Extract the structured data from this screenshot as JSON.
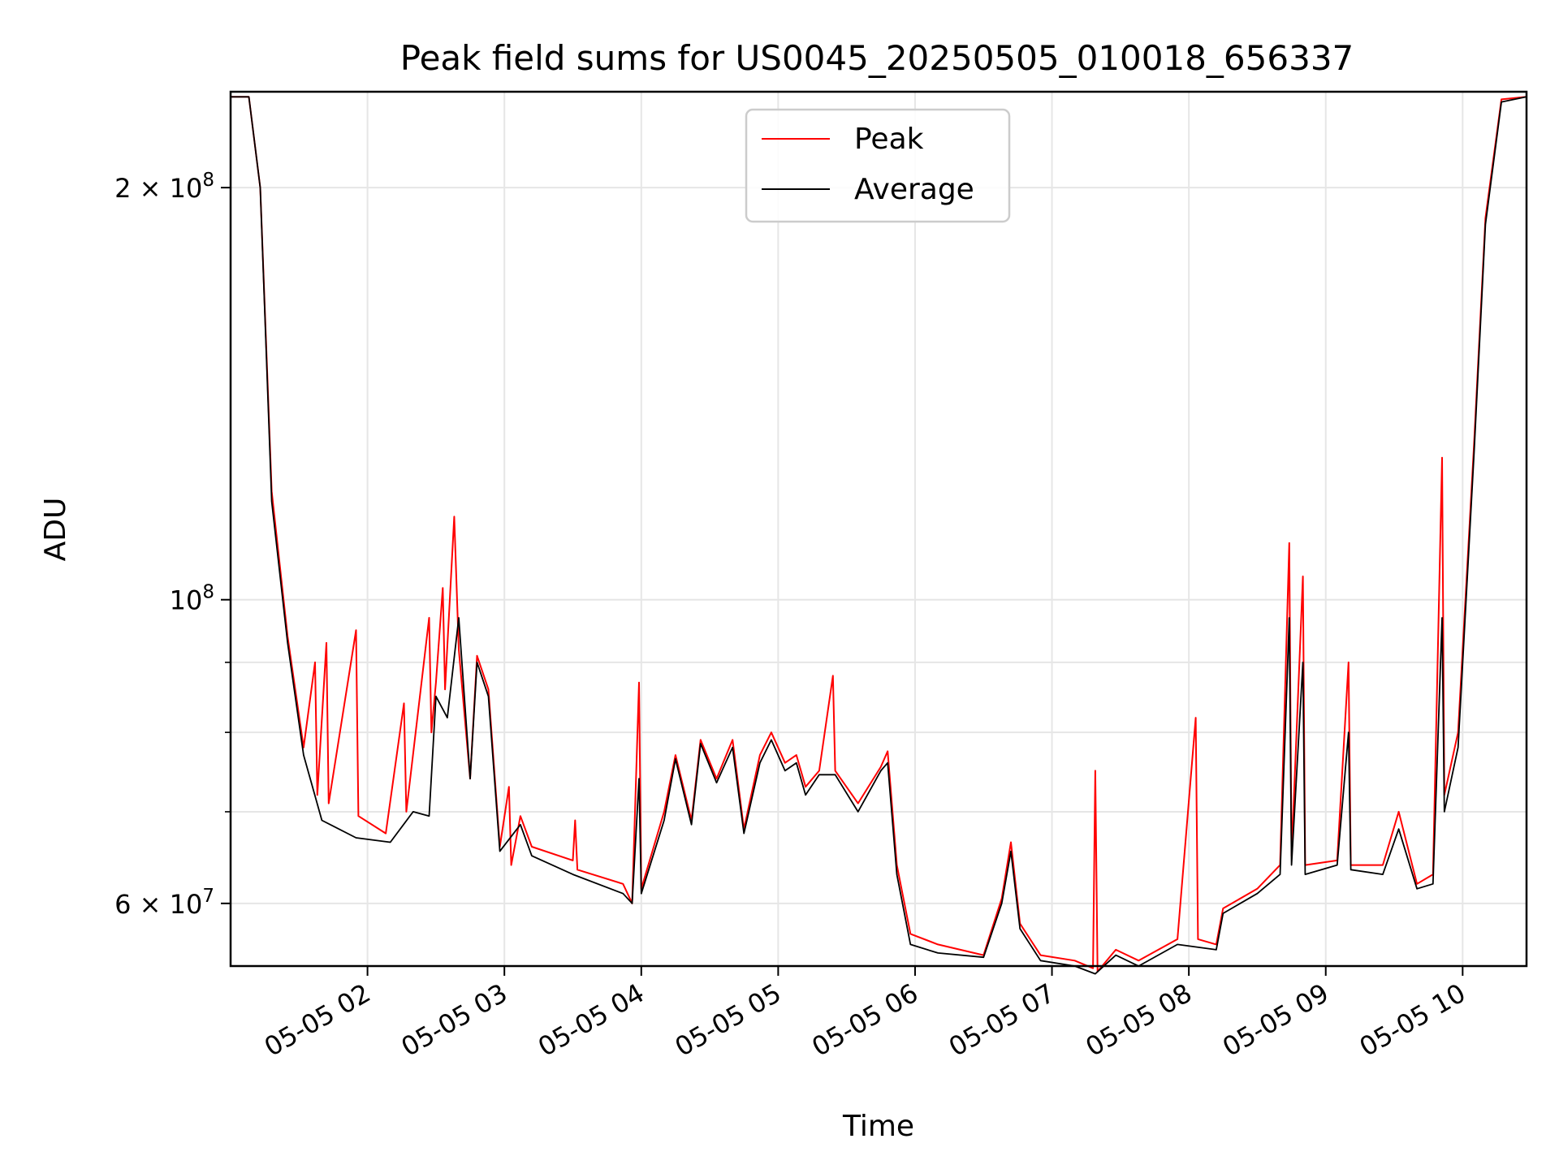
{
  "chart_data": {
    "type": "line",
    "title": "Peak field sums for US0045_20250505_010018_656337",
    "xlabel": "Time",
    "ylabel": "ADU",
    "x_range": [
      "2025-05-05 01:00",
      "2025-05-05 10:28"
    ],
    "ylim": [
      54000000,
      235000000
    ],
    "y_scale": "log",
    "grid": true,
    "legend_position": "upper center",
    "x_ticks": [
      {
        "value": "2025-05-05 02:00",
        "label": "05-05 02"
      },
      {
        "value": "2025-05-05 03:00",
        "label": "05-05 03"
      },
      {
        "value": "2025-05-05 04:00",
        "label": "05-05 04"
      },
      {
        "value": "2025-05-05 05:00",
        "label": "05-05 05"
      },
      {
        "value": "2025-05-05 06:00",
        "label": "05-05 06"
      },
      {
        "value": "2025-05-05 07:00",
        "label": "05-05 07"
      },
      {
        "value": "2025-05-05 08:00",
        "label": "05-05 08"
      },
      {
        "value": "2025-05-05 09:00",
        "label": "05-05 09"
      },
      {
        "value": "2025-05-05 10:00",
        "label": "05-05 10"
      }
    ],
    "y_major_ticks": [
      {
        "value": 60000000,
        "base": "6",
        "exp": "7",
        "label": "6 × 10^7"
      },
      {
        "value": 100000000,
        "base": "",
        "exp": "8",
        "label": "10^8"
      },
      {
        "value": 200000000,
        "base": "2",
        "exp": "8",
        "label": "2 × 10^8"
      }
    ],
    "y_minor_ticks": [
      70000000,
      80000000,
      90000000
    ],
    "series": [
      {
        "name": "Peak",
        "color": "#ff0000",
        "points": [
          [
            "2025-05-05 01:00",
            233000000
          ],
          [
            "2025-05-05 01:08",
            233000000
          ],
          [
            "2025-05-05 01:13",
            200000000
          ],
          [
            "2025-05-05 01:18",
            120000000
          ],
          [
            "2025-05-05 01:25",
            94000000
          ],
          [
            "2025-05-05 01:32",
            78000000
          ],
          [
            "2025-05-05 01:37",
            90000000
          ],
          [
            "2025-05-05 01:38",
            72000000
          ],
          [
            "2025-05-05 01:42",
            93000000
          ],
          [
            "2025-05-05 01:43",
            71000000
          ],
          [
            "2025-05-05 01:55",
            95000000
          ],
          [
            "2025-05-05 01:56",
            69500000
          ],
          [
            "2025-05-05 02:08",
            67500000
          ],
          [
            "2025-05-05 02:16",
            84000000
          ],
          [
            "2025-05-05 02:17",
            70000000
          ],
          [
            "2025-05-05 02:27",
            97000000
          ],
          [
            "2025-05-05 02:28",
            80000000
          ],
          [
            "2025-05-05 02:30",
            87000000
          ],
          [
            "2025-05-05 02:33",
            102000000
          ],
          [
            "2025-05-05 02:34",
            86000000
          ],
          [
            "2025-05-05 02:38",
            115000000
          ],
          [
            "2025-05-05 02:40",
            92000000
          ],
          [
            "2025-05-05 02:45",
            74000000
          ],
          [
            "2025-05-05 02:48",
            91000000
          ],
          [
            "2025-05-05 02:53",
            86000000
          ],
          [
            "2025-05-05 02:58",
            66000000
          ],
          [
            "2025-05-05 03:02",
            73000000
          ],
          [
            "2025-05-05 03:03",
            64000000
          ],
          [
            "2025-05-05 03:07",
            69500000
          ],
          [
            "2025-05-05 03:12",
            66000000
          ],
          [
            "2025-05-05 03:30",
            64500000
          ],
          [
            "2025-05-05 03:31",
            69000000
          ],
          [
            "2025-05-05 03:32",
            63500000
          ],
          [
            "2025-05-05 03:52",
            62000000
          ],
          [
            "2025-05-05 03:56",
            60000000
          ],
          [
            "2025-05-05 03:59",
            87000000
          ],
          [
            "2025-05-05 04:00",
            61500000
          ],
          [
            "2025-05-05 04:10",
            70000000
          ],
          [
            "2025-05-05 04:15",
            77000000
          ],
          [
            "2025-05-05 04:22",
            69000000
          ],
          [
            "2025-05-05 04:26",
            79000000
          ],
          [
            "2025-05-05 04:33",
            74000000
          ],
          [
            "2025-05-05 04:40",
            79000000
          ],
          [
            "2025-05-05 04:45",
            68000000
          ],
          [
            "2025-05-05 04:52",
            77000000
          ],
          [
            "2025-05-05 04:57",
            80000000
          ],
          [
            "2025-05-05 05:03",
            76000000
          ],
          [
            "2025-05-05 05:08",
            77000000
          ],
          [
            "2025-05-05 05:12",
            73000000
          ],
          [
            "2025-05-05 05:18",
            75000000
          ],
          [
            "2025-05-05 05:24",
            88000000
          ],
          [
            "2025-05-05 05:25",
            75000000
          ],
          [
            "2025-05-05 05:35",
            71000000
          ],
          [
            "2025-05-05 05:45",
            75500000
          ],
          [
            "2025-05-05 05:48",
            77500000
          ],
          [
            "2025-05-05 05:52",
            64000000
          ],
          [
            "2025-05-05 05:58",
            57000000
          ],
          [
            "2025-05-05 06:10",
            56000000
          ],
          [
            "2025-05-05 06:30",
            55000000
          ],
          [
            "2025-05-05 06:38",
            60500000
          ],
          [
            "2025-05-05 06:42",
            66500000
          ],
          [
            "2025-05-05 06:46",
            58000000
          ],
          [
            "2025-05-05 06:55",
            55000000
          ],
          [
            "2025-05-05 07:10",
            54500000
          ],
          [
            "2025-05-05 07:18",
            53800000
          ],
          [
            "2025-05-05 07:19",
            75000000
          ],
          [
            "2025-05-05 07:20",
            53500000
          ],
          [
            "2025-05-05 07:28",
            55500000
          ],
          [
            "2025-05-05 07:38",
            54500000
          ],
          [
            "2025-05-05 07:55",
            56500000
          ],
          [
            "2025-05-05 08:03",
            82000000
          ],
          [
            "2025-05-05 08:04",
            56500000
          ],
          [
            "2025-05-05 08:12",
            56000000
          ],
          [
            "2025-05-05 08:15",
            59500000
          ],
          [
            "2025-05-05 08:30",
            61500000
          ],
          [
            "2025-05-05 08:40",
            64000000
          ],
          [
            "2025-05-05 08:44",
            110000000
          ],
          [
            "2025-05-05 08:45",
            65000000
          ],
          [
            "2025-05-05 08:50",
            104000000
          ],
          [
            "2025-05-05 08:51",
            64000000
          ],
          [
            "2025-05-05 09:05",
            64500000
          ],
          [
            "2025-05-05 09:10",
            90000000
          ],
          [
            "2025-05-05 09:11",
            64000000
          ],
          [
            "2025-05-05 09:25",
            64000000
          ],
          [
            "2025-05-05 09:32",
            70000000
          ],
          [
            "2025-05-05 09:40",
            62000000
          ],
          [
            "2025-05-05 09:47",
            63000000
          ],
          [
            "2025-05-05 09:51",
            127000000
          ],
          [
            "2025-05-05 09:52",
            72000000
          ],
          [
            "2025-05-05 09:58",
            80000000
          ],
          [
            "2025-05-05 10:05",
            130000000
          ],
          [
            "2025-05-05 10:10",
            190000000
          ],
          [
            "2025-05-05 10:17",
            232000000
          ],
          [
            "2025-05-05 10:28",
            233000000
          ]
        ]
      },
      {
        "name": "Average",
        "color": "#000000",
        "points": [
          [
            "2025-05-05 01:00",
            233000000
          ],
          [
            "2025-05-05 01:08",
            233000000
          ],
          [
            "2025-05-05 01:13",
            200000000
          ],
          [
            "2025-05-05 01:18",
            118000000
          ],
          [
            "2025-05-05 01:25",
            93000000
          ],
          [
            "2025-05-05 01:32",
            77000000
          ],
          [
            "2025-05-05 01:40",
            69000000
          ],
          [
            "2025-05-05 01:55",
            67000000
          ],
          [
            "2025-05-05 02:10",
            66500000
          ],
          [
            "2025-05-05 02:20",
            70000000
          ],
          [
            "2025-05-05 02:27",
            69500000
          ],
          [
            "2025-05-05 02:30",
            85000000
          ],
          [
            "2025-05-05 02:35",
            82000000
          ],
          [
            "2025-05-05 02:40",
            97000000
          ],
          [
            "2025-05-05 02:45",
            74000000
          ],
          [
            "2025-05-05 02:48",
            90000000
          ],
          [
            "2025-05-05 02:53",
            85000000
          ],
          [
            "2025-05-05 02:58",
            65500000
          ],
          [
            "2025-05-05 03:07",
            68500000
          ],
          [
            "2025-05-05 03:12",
            65000000
          ],
          [
            "2025-05-05 03:30",
            63000000
          ],
          [
            "2025-05-05 03:52",
            61000000
          ],
          [
            "2025-05-05 03:56",
            60000000
          ],
          [
            "2025-05-05 03:59",
            74000000
          ],
          [
            "2025-05-05 04:00",
            61000000
          ],
          [
            "2025-05-05 04:10",
            69000000
          ],
          [
            "2025-05-05 04:15",
            76500000
          ],
          [
            "2025-05-05 04:22",
            68500000
          ],
          [
            "2025-05-05 04:26",
            78500000
          ],
          [
            "2025-05-05 04:33",
            73500000
          ],
          [
            "2025-05-05 04:40",
            78000000
          ],
          [
            "2025-05-05 04:45",
            67500000
          ],
          [
            "2025-05-05 04:52",
            76000000
          ],
          [
            "2025-05-05 04:57",
            79000000
          ],
          [
            "2025-05-05 05:03",
            75000000
          ],
          [
            "2025-05-05 05:08",
            76000000
          ],
          [
            "2025-05-05 05:12",
            72000000
          ],
          [
            "2025-05-05 05:18",
            74500000
          ],
          [
            "2025-05-05 05:25",
            74500000
          ],
          [
            "2025-05-05 05:35",
            70000000
          ],
          [
            "2025-05-05 05:45",
            75000000
          ],
          [
            "2025-05-05 05:48",
            76000000
          ],
          [
            "2025-05-05 05:52",
            63000000
          ],
          [
            "2025-05-05 05:58",
            56000000
          ],
          [
            "2025-05-05 06:10",
            55200000
          ],
          [
            "2025-05-05 06:30",
            54800000
          ],
          [
            "2025-05-05 06:38",
            60000000
          ],
          [
            "2025-05-05 06:42",
            65500000
          ],
          [
            "2025-05-05 06:46",
            57500000
          ],
          [
            "2025-05-05 06:55",
            54500000
          ],
          [
            "2025-05-05 07:10",
            54000000
          ],
          [
            "2025-05-05 07:19",
            53300000
          ],
          [
            "2025-05-05 07:28",
            55000000
          ],
          [
            "2025-05-05 07:38",
            54000000
          ],
          [
            "2025-05-05 07:55",
            56000000
          ],
          [
            "2025-05-05 08:12",
            55500000
          ],
          [
            "2025-05-05 08:15",
            59000000
          ],
          [
            "2025-05-05 08:30",
            61000000
          ],
          [
            "2025-05-05 08:40",
            63000000
          ],
          [
            "2025-05-05 08:44",
            97000000
          ],
          [
            "2025-05-05 08:45",
            64000000
          ],
          [
            "2025-05-05 08:50",
            90000000
          ],
          [
            "2025-05-05 08:51",
            63000000
          ],
          [
            "2025-05-05 09:05",
            64000000
          ],
          [
            "2025-05-05 09:10",
            80000000
          ],
          [
            "2025-05-05 09:11",
            63500000
          ],
          [
            "2025-05-05 09:25",
            63000000
          ],
          [
            "2025-05-05 09:32",
            68000000
          ],
          [
            "2025-05-05 09:40",
            61500000
          ],
          [
            "2025-05-05 09:47",
            62000000
          ],
          [
            "2025-05-05 09:51",
            97000000
          ],
          [
            "2025-05-05 09:52",
            70000000
          ],
          [
            "2025-05-05 09:58",
            78000000
          ],
          [
            "2025-05-05 10:05",
            128000000
          ],
          [
            "2025-05-05 10:10",
            188000000
          ],
          [
            "2025-05-05 10:17",
            231000000
          ],
          [
            "2025-05-05 10:28",
            233000000
          ]
        ]
      }
    ]
  }
}
